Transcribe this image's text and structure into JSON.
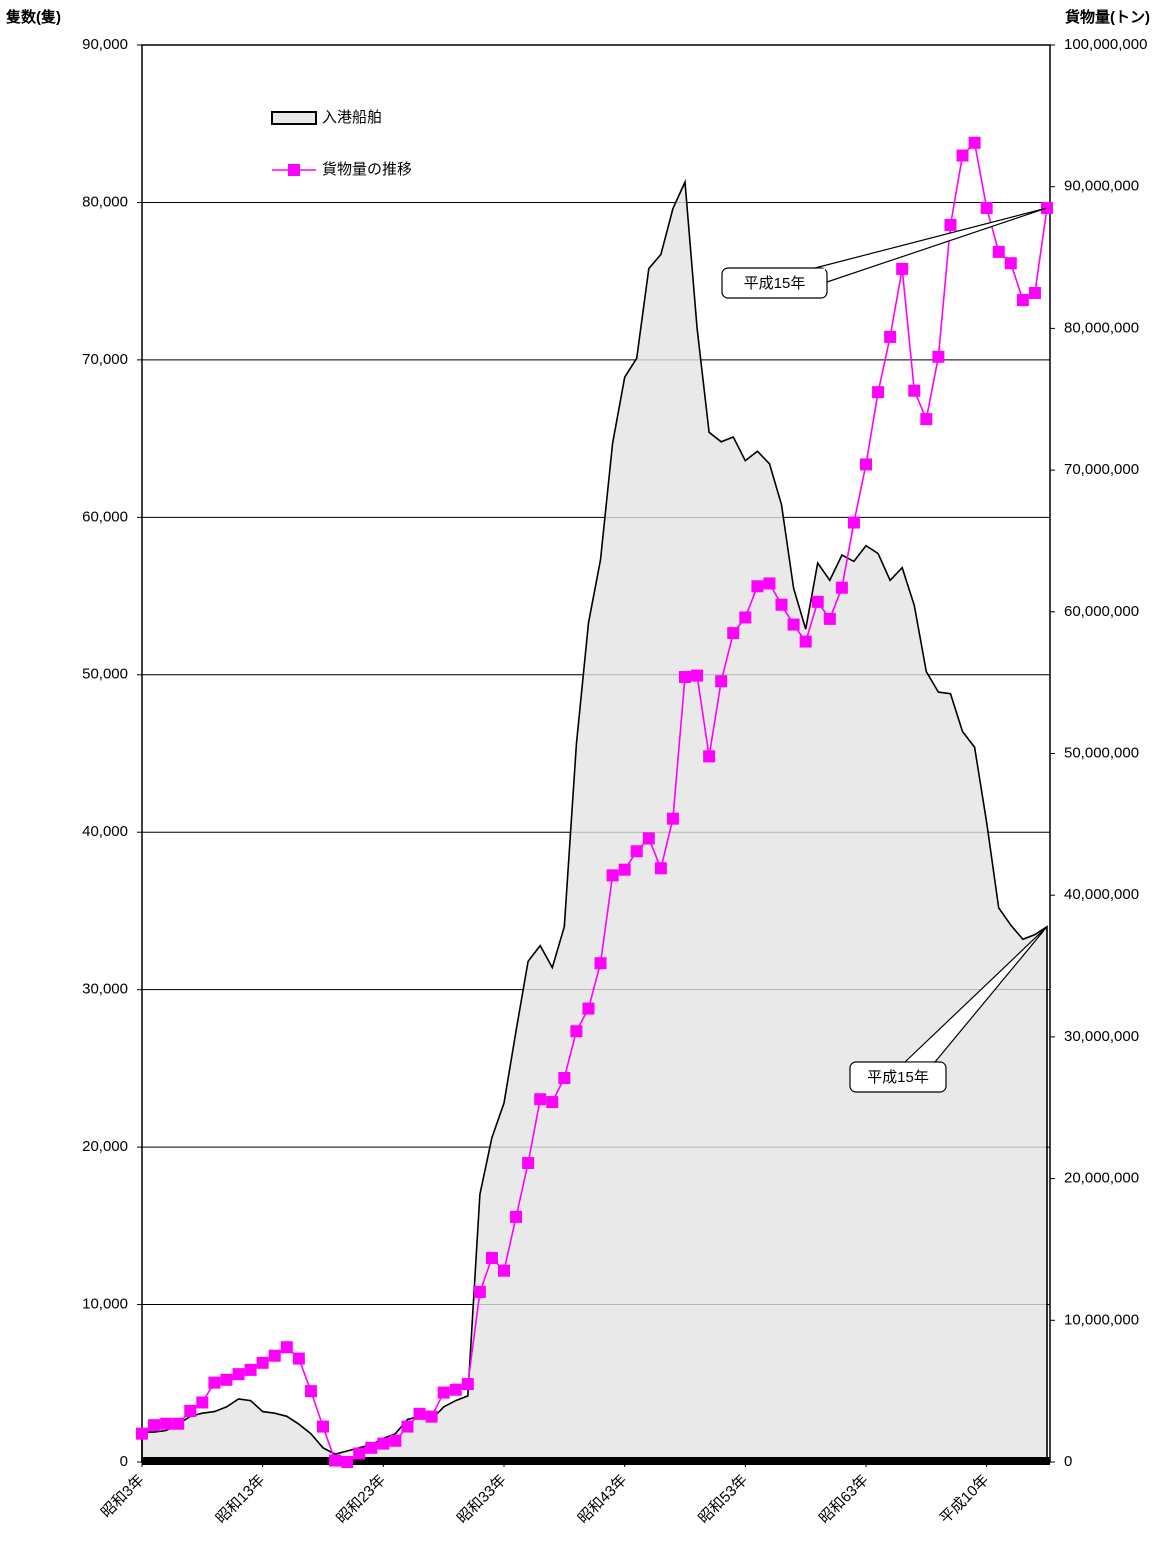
{
  "chart_data": {
    "type": "combo",
    "y_label": "隻数(隻)",
    "y2_label": "貨物量(トン)",
    "categories": [
      "昭和3年",
      null,
      null,
      null,
      null,
      null,
      null,
      null,
      null,
      null,
      "昭和13年",
      null,
      null,
      null,
      null,
      null,
      null,
      null,
      null,
      null,
      "昭和23年",
      null,
      null,
      null,
      null,
      null,
      null,
      null,
      null,
      null,
      "昭和33年",
      null,
      null,
      null,
      null,
      null,
      null,
      null,
      null,
      null,
      "昭和43年",
      null,
      null,
      null,
      null,
      null,
      null,
      null,
      null,
      null,
      "昭和53年",
      null,
      null,
      null,
      null,
      null,
      null,
      null,
      null,
      null,
      "昭和63年",
      null,
      null,
      null,
      null,
      null,
      null,
      null,
      null,
      null,
      "平成10年",
      null,
      null,
      null,
      null,
      null
    ],
    "series": [
      {
        "name": "入港船舶",
        "type": "area",
        "color": "#e9e9e9",
        "line_color": "#000000",
        "values": [
          1900,
          1900,
          2000,
          2400,
          2900,
          3100,
          3200,
          3500,
          4000,
          3900,
          3200,
          3100,
          2900,
          2400,
          1800,
          900,
          500,
          700,
          900,
          1100,
          1500,
          1800,
          2700,
          2900,
          2700,
          3500,
          3900,
          4200,
          17000,
          20600,
          22800,
          27400,
          31800,
          32800,
          31400,
          34000,
          45600,
          53300,
          57300,
          64700,
          68900,
          70100,
          75800,
          76700,
          79600,
          81300,
          72000,
          65400,
          64800,
          65100,
          63600,
          64200,
          63400,
          60800,
          55500,
          52900,
          57100,
          56000,
          57600,
          57200,
          58200,
          57700,
          56000,
          56800,
          54400,
          50200,
          48900,
          48800,
          46400,
          45400,
          40600,
          35200,
          34100,
          33200,
          33500,
          34000
        ]
      },
      {
        "name": "貨物量の推移",
        "type": "line",
        "axis": "y2",
        "color": "#ff00ff",
        "values": [
          2000000,
          2600000,
          2700000,
          2700000,
          3600000,
          4200000,
          5600000,
          5800000,
          6200000,
          6500000,
          7000000,
          7500000,
          8100000,
          7300000,
          5000000,
          2500000,
          100000,
          0,
          600000,
          1000000,
          1300000,
          1500000,
          2500000,
          3400000,
          3200000,
          4900000,
          5100000,
          5500000,
          12000000,
          14400000,
          13500000,
          17300000,
          21100000,
          25600000,
          25400000,
          27100000,
          30400000,
          32000000,
          35200000,
          41400000,
          41800000,
          43100000,
          44000000,
          41900000,
          45400000,
          55400000,
          55500000,
          49800000,
          55100000,
          58500000,
          59600000,
          61800000,
          62000000,
          60500000,
          59100000,
          57900000,
          60700000,
          59500000,
          61700000,
          66300000,
          70400000,
          75500000,
          79400000,
          84200000,
          75600000,
          73600000,
          78000000,
          87300000,
          92200000,
          93100000,
          88500000,
          85400000,
          84600000,
          82000000,
          82500000,
          88500000
        ]
      }
    ],
    "ylim": [
      0,
      90000
    ],
    "yticks": [
      0,
      {
        "value": 10000,
        "label": "10,000"
      },
      {
        "value": 20000,
        "label": "20,000"
      },
      {
        "value": 30000,
        "label": "30,000"
      },
      {
        "value": 40000,
        "label": "40,000"
      },
      {
        "value": 50000,
        "label": "50,000"
      },
      {
        "value": 60000,
        "label": "60,000"
      },
      {
        "value": 70000,
        "label": "70,000"
      },
      {
        "value": 80000,
        "label": "80,000"
      },
      {
        "value": 90000,
        "label": "90,000"
      }
    ],
    "y2lim": [
      0,
      100000000
    ],
    "y2ticks": [
      0,
      {
        "value": 10000000,
        "label": "10,000,000"
      },
      {
        "value": 20000000,
        "label": "20,000,000"
      },
      {
        "value": 30000000,
        "label": "30,000,000"
      },
      {
        "value": 40000000,
        "label": "40,000,000"
      },
      {
        "value": 50000000,
        "label": "50,000,000"
      },
      {
        "value": 60000000,
        "label": "60,000,000"
      },
      {
        "value": 70000000,
        "label": "70,000,000"
      },
      {
        "value": 80000000,
        "label": "80,000,000"
      },
      {
        "value": 90000000,
        "label": "90,000,000"
      },
      {
        "value": 100000000,
        "label": "100,000,000"
      }
    ],
    "grid": true,
    "legend": "top-left",
    "annotations": [
      "平成15年",
      "平成15年"
    ]
  }
}
